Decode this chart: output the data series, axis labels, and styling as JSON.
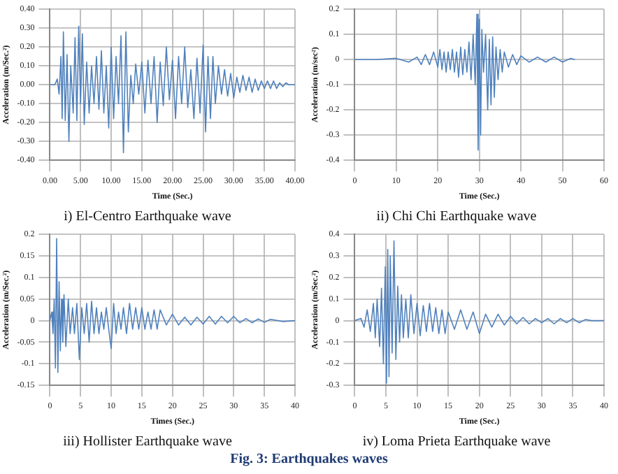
{
  "chart_data": [
    {
      "type": "line",
      "title": "i) El-Centro Earthquake wave",
      "xlabel": "Time (Sec.)",
      "ylabel": "Acceleration (m/Sec.²)",
      "grid": true,
      "marker": "none",
      "line_style": "solid",
      "xlim": [
        0,
        40
      ],
      "xticks": [
        {
          "value": 0,
          "label": "0.00"
        },
        {
          "value": 5,
          "label": "5.00"
        },
        {
          "value": 10,
          "label": "10.00"
        },
        {
          "value": 15,
          "label": "15.00"
        },
        {
          "value": 20,
          "label": "20.00"
        },
        {
          "value": 25,
          "label": "25.00"
        },
        {
          "value": 30,
          "label": "30.00"
        },
        {
          "value": 35,
          "label": "35.00"
        },
        {
          "value": 40,
          "label": "40.00"
        }
      ],
      "ylim": [
        -0.4,
        0.4
      ],
      "yticks": [
        {
          "value": -0.4,
          "label": "-0.40"
        },
        {
          "value": -0.3,
          "label": "-0.30"
        },
        {
          "value": -0.2,
          "label": "-0.20"
        },
        {
          "value": -0.1,
          "label": "-0.10"
        },
        {
          "value": 0,
          "label": "0.00"
        },
        {
          "value": 0.1,
          "label": "0.10"
        },
        {
          "value": 0.2,
          "label": "0.20"
        },
        {
          "value": 0.3,
          "label": "0.30"
        },
        {
          "value": 0.4,
          "label": "0.40"
        }
      ],
      "series": [
        {
          "color": "#4f81bd",
          "x": [
            0,
            0.8,
            1.2,
            1.5,
            1.8,
            2.0,
            2.2,
            2.5,
            2.8,
            3.1,
            3.4,
            3.8,
            4.1,
            4.4,
            4.7,
            5.0,
            5.3,
            5.6,
            6.0,
            6.4,
            6.8,
            7.2,
            7.6,
            8.0,
            8.4,
            8.8,
            9.2,
            9.6,
            10.0,
            10.4,
            10.8,
            11.2,
            11.6,
            12.0,
            12.4,
            12.8,
            13.2,
            13.6,
            14.0,
            14.5,
            15.0,
            15.5,
            16.0,
            16.5,
            17.0,
            17.5,
            18.0,
            18.5,
            19.0,
            19.5,
            20.0,
            20.5,
            21.0,
            21.5,
            22.0,
            22.5,
            23.0,
            23.5,
            24.0,
            24.5,
            25.0,
            25.4,
            25.8,
            26.2,
            26.6,
            27.0,
            27.5,
            28.0,
            28.5,
            29.0,
            29.5,
            30.0,
            30.5,
            31.0,
            31.5,
            32.0,
            32.5,
            33.0,
            33.5,
            34.0,
            34.5,
            35.0,
            35.5,
            36.0,
            36.5,
            37.0,
            37.5,
            38.0,
            38.5,
            39.0,
            40.0
          ],
          "values": [
            0,
            0,
            0.03,
            -0.05,
            0.15,
            -0.18,
            0.28,
            -0.19,
            0.16,
            -0.3,
            0.1,
            -0.15,
            0.25,
            -0.19,
            0.31,
            -0.1,
            0.27,
            -0.21,
            0.12,
            -0.15,
            0.1,
            -0.1,
            0.15,
            -0.13,
            0.18,
            -0.15,
            0.1,
            -0.23,
            0.2,
            -0.18,
            0.15,
            -0.1,
            0.26,
            -0.36,
            0.28,
            -0.25,
            0.05,
            -0.1,
            0.11,
            -0.05,
            0.12,
            -0.15,
            0.13,
            -0.1,
            0.15,
            -0.2,
            0.12,
            -0.11,
            0.2,
            -0.08,
            0.13,
            -0.18,
            0.15,
            -0.1,
            0.2,
            -0.12,
            0.08,
            -0.18,
            0.14,
            -0.15,
            0.21,
            -0.25,
            0.15,
            -0.18,
            0.15,
            -0.1,
            0.1,
            -0.05,
            0.08,
            -0.06,
            0.06,
            -0.07,
            0.04,
            -0.04,
            0.05,
            -0.03,
            0.04,
            -0.04,
            0.03,
            -0.03,
            0.02,
            -0.02,
            0.02,
            -0.02,
            0.02,
            -0.02,
            0.01,
            -0.01,
            0.01,
            0,
            0
          ]
        }
      ]
    },
    {
      "type": "line",
      "title": "ii) Chi Chi Earthquake wave",
      "xlabel": "Time (Sec.)",
      "ylabel": "Acceleration (m/sec²)",
      "grid": true,
      "marker": "none",
      "line_style": "solid",
      "xlim": [
        0,
        60
      ],
      "xticks": [
        0,
        10,
        20,
        30,
        40,
        50,
        60
      ],
      "ylim": [
        -0.4,
        0.2
      ],
      "yticks": [
        -0.4,
        -0.3,
        -0.2,
        -0.1,
        0,
        0.1,
        0.2
      ],
      "series": [
        {
          "color": "#4f81bd",
          "x": [
            0,
            5,
            10,
            13,
            15,
            16,
            17,
            18,
            19,
            20,
            20.5,
            21,
            21.5,
            22,
            22.5,
            23,
            23.5,
            24,
            24.5,
            25,
            25.5,
            26,
            26.5,
            27,
            27.5,
            28,
            28.5,
            29,
            29.4,
            29.7,
            30,
            30.3,
            30.6,
            31,
            31.5,
            32,
            32.4,
            32.8,
            33.2,
            33.6,
            34,
            34.5,
            35,
            35.5,
            36,
            37,
            38,
            39,
            40,
            42,
            44,
            46,
            48,
            50,
            52,
            53
          ],
          "values": [
            0,
            0,
            0.005,
            -0.01,
            0.01,
            -0.02,
            0.02,
            -0.02,
            0.03,
            -0.03,
            0.04,
            -0.04,
            0.03,
            -0.05,
            0.03,
            -0.04,
            0.04,
            -0.05,
            0.03,
            -0.07,
            0.05,
            -0.06,
            0.04,
            -0.05,
            0.07,
            -0.08,
            0.1,
            -0.1,
            0.18,
            -0.36,
            0.16,
            -0.3,
            0.12,
            -0.05,
            0.1,
            -0.2,
            0.08,
            -0.18,
            0.09,
            -0.15,
            0.05,
            -0.08,
            0.04,
            -0.05,
            0.03,
            -0.03,
            0.02,
            -0.02,
            0.015,
            -0.01,
            0.01,
            -0.01,
            0.01,
            -0.01,
            0.005,
            0
          ]
        }
      ]
    },
    {
      "type": "line",
      "title": "iii) Hollister Earthquake wave",
      "xlabel": "Times (Sec.)",
      "ylabel": "Acceleration (m/Sec.²)",
      "grid": true,
      "marker": "none",
      "line_style": "solid",
      "xlim": [
        0,
        40
      ],
      "xticks": [
        0,
        5,
        10,
        15,
        20,
        25,
        30,
        35,
        40
      ],
      "ylim": [
        -0.15,
        0.2
      ],
      "yticks": [
        -0.15,
        -0.1,
        -0.05,
        0,
        0.05,
        0.1,
        0.15,
        0.2
      ],
      "series": [
        {
          "color": "#4f81bd",
          "x": [
            0,
            0.3,
            0.5,
            0.7,
            0.9,
            1.1,
            1.3,
            1.5,
            1.7,
            1.9,
            2.1,
            2.3,
            2.6,
            3.0,
            3.3,
            3.7,
            4.0,
            4.4,
            4.8,
            5.2,
            5.6,
            6.0,
            6.4,
            6.8,
            7.2,
            7.6,
            8.0,
            8.4,
            8.8,
            9.2,
            9.6,
            10.0,
            10.4,
            10.8,
            11.2,
            11.6,
            12.0,
            12.5,
            13.0,
            13.5,
            14.0,
            14.5,
            15.0,
            15.5,
            16.0,
            16.5,
            17.0,
            17.5,
            18.0,
            19,
            20,
            21,
            22,
            23,
            24,
            25,
            26,
            27,
            28,
            29,
            30,
            31,
            32,
            33,
            34,
            35,
            36,
            38,
            40
          ],
          "values": [
            0,
            0.02,
            -0.03,
            0.05,
            -0.11,
            0.19,
            -0.12,
            0.09,
            -0.07,
            0.05,
            -0.05,
            0.06,
            -0.06,
            0.05,
            -0.03,
            0.03,
            -0.03,
            0.04,
            -0.09,
            0.03,
            -0.03,
            0.04,
            -0.05,
            0.045,
            -0.03,
            0.03,
            -0.03,
            0.02,
            -0.02,
            0.03,
            -0.02,
            -0.065,
            0.04,
            -0.03,
            0.02,
            -0.02,
            0.03,
            -0.03,
            0.04,
            -0.02,
            0.03,
            -0.02,
            0.03,
            -0.02,
            0.02,
            -0.02,
            0.025,
            -0.02,
            0.025,
            -0.01,
            0.015,
            -0.01,
            0.008,
            -0.01,
            0.008,
            -0.008,
            0.01,
            -0.008,
            0.01,
            -0.005,
            0.01,
            -0.005,
            0.005,
            -0.005,
            0.004,
            -0.004,
            0.003,
            -0.002,
            0
          ]
        }
      ]
    },
    {
      "type": "line",
      "title": "iv) Loma Prieta Earthquake wave",
      "xlabel": "Time (Sec.)",
      "ylabel": "Acceleration (m/Sec.²)",
      "grid": true,
      "marker": "none",
      "line_style": "solid",
      "annotations": [
        "Fig. 3: Earthquakes waves"
      ],
      "xlim": [
        0,
        40
      ],
      "xticks": [
        0,
        5,
        10,
        15,
        20,
        25,
        30,
        35,
        40
      ],
      "ylim": [
        -0.3,
        0.4
      ],
      "yticks": [
        -0.3,
        -0.2,
        -0.1,
        0,
        0.1,
        0.2,
        0.3,
        0.4
      ],
      "series": [
        {
          "color": "#4f81bd",
          "x": [
            0,
            1,
            1.5,
            2,
            2.5,
            3,
            3.3,
            3.6,
            4,
            4.3,
            4.6,
            4.9,
            5.1,
            5.3,
            5.5,
            5.7,
            6.0,
            6.3,
            6.6,
            6.9,
            7.2,
            7.5,
            7.8,
            8.2,
            8.6,
            9,
            9.5,
            10,
            10.5,
            11,
            11.5,
            12,
            12.5,
            13,
            13.5,
            14,
            14.5,
            15,
            16,
            17,
            18,
            19,
            20,
            21,
            22,
            23,
            24,
            25,
            26,
            27,
            28,
            29,
            30,
            31,
            32,
            33,
            34,
            35,
            36,
            37,
            38,
            40
          ],
          "values": [
            0,
            0.01,
            -0.03,
            0.05,
            -0.05,
            0.08,
            -0.08,
            0.1,
            -0.12,
            0.15,
            -0.2,
            0.25,
            -0.29,
            0.33,
            -0.26,
            0.3,
            -0.15,
            0.37,
            -0.18,
            0.16,
            -0.1,
            0.12,
            -0.08,
            0.1,
            -0.08,
            0.12,
            -0.06,
            0.08,
            -0.07,
            0.07,
            -0.05,
            0.08,
            -0.05,
            0.06,
            -0.06,
            0.05,
            -0.06,
            0.04,
            -0.04,
            0.05,
            -0.04,
            0.04,
            -0.06,
            0.03,
            -0.03,
            0.03,
            -0.02,
            0.02,
            -0.015,
            0.015,
            -0.015,
            0.01,
            -0.01,
            0.01,
            -0.015,
            0.01,
            -0.01,
            0.01,
            -0.01,
            0.005,
            0,
            0
          ]
        }
      ]
    }
  ]
}
